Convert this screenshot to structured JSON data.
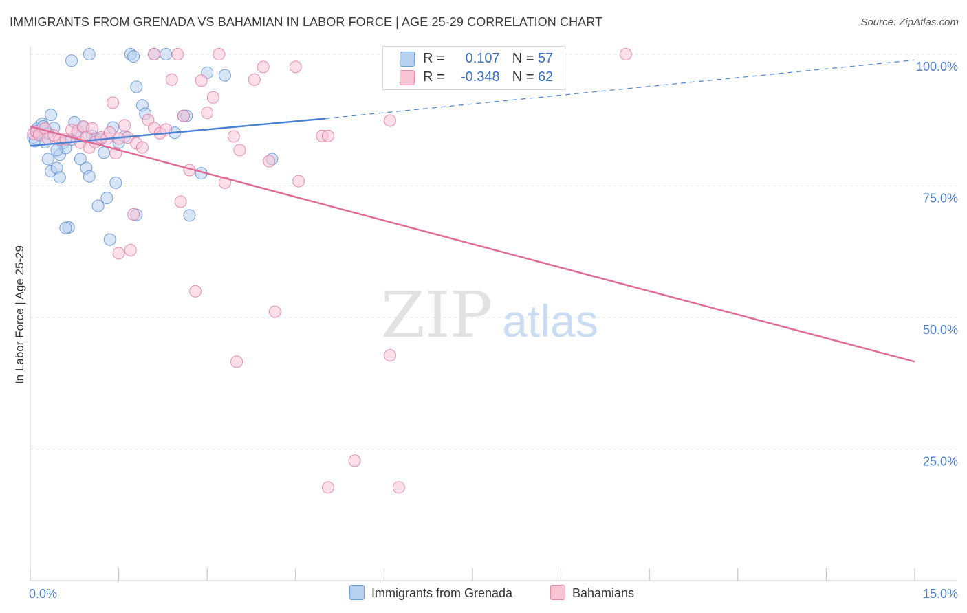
{
  "title": "IMMIGRANTS FROM GRENADA VS BAHAMIAN IN LABOR FORCE | AGE 25-29 CORRELATION CHART",
  "source": "Source: ZipAtlas.com",
  "watermark": {
    "zip": "ZIP",
    "atlas": "atlas"
  },
  "legend": {
    "r_label": "R =",
    "n_label": "N =",
    "series": [
      {
        "name": "Immigrants from Grenada",
        "r": "0.107",
        "n": "57",
        "fill": "#b7d0f0",
        "stroke": "#6f9fdc"
      },
      {
        "name": "Bahamians",
        "r": "-0.348",
        "n": "62",
        "fill": "#f9c5d5",
        "stroke": "#e88aa9"
      }
    ]
  },
  "chart_data": {
    "type": "scatter",
    "title": "IMMIGRANTS FROM GRENADA VS BAHAMIAN IN LABOR FORCE | AGE 25-29 CORRELATION CHART",
    "xlabel": "",
    "ylabel": "In Labor Force | Age 25-29",
    "xlim": [
      0,
      15
    ],
    "ylim": [
      0,
      100
    ],
    "x_tick_labels": [
      {
        "value": 0,
        "label": "0.0%"
      },
      {
        "value": 15,
        "label": "15.0%"
      }
    ],
    "y_tick_labels": [
      {
        "value": 100,
        "label": "100.0%"
      },
      {
        "value": 75,
        "label": "75.0%"
      },
      {
        "value": 50,
        "label": "50.0%"
      },
      {
        "value": 25,
        "label": "25.0%"
      }
    ],
    "grid": true,
    "series": [
      {
        "name": "Immigrants from Grenada",
        "color": "#4a82d4",
        "fill": "#b7d0f0",
        "points": [
          [
            0.05,
            84.2
          ],
          [
            0.08,
            83.5
          ],
          [
            0.1,
            85.5
          ],
          [
            0.12,
            85.9
          ],
          [
            0.15,
            85.0
          ],
          [
            0.2,
            86.8
          ],
          [
            0.22,
            86.3
          ],
          [
            0.25,
            83.3
          ],
          [
            0.3,
            80.1
          ],
          [
            0.35,
            77.8
          ],
          [
            0.4,
            86.0
          ],
          [
            0.45,
            78.4
          ],
          [
            0.5,
            76.6
          ],
          [
            0.5,
            80.9
          ],
          [
            0.55,
            83.1
          ],
          [
            0.6,
            82.2
          ],
          [
            0.65,
            67.1
          ],
          [
            0.7,
            83.8
          ],
          [
            0.75,
            87.1
          ],
          [
            0.8,
            85.0
          ],
          [
            0.85,
            80.1
          ],
          [
            0.9,
            86.1
          ],
          [
            0.95,
            78.4
          ],
          [
            1.0,
            76.8
          ],
          [
            1.05,
            84.5
          ],
          [
            1.1,
            84.0
          ],
          [
            1.15,
            71.2
          ],
          [
            1.2,
            83.9
          ],
          [
            1.25,
            81.3
          ],
          [
            1.3,
            72.7
          ],
          [
            1.35,
            64.8
          ],
          [
            1.4,
            86.1
          ],
          [
            1.45,
            75.6
          ],
          [
            1.5,
            83.2
          ],
          [
            1.6,
            84.4
          ],
          [
            1.7,
            100.0
          ],
          [
            1.75,
            99.6
          ],
          [
            1.8,
            93.8
          ],
          [
            1.9,
            90.3
          ],
          [
            1.95,
            88.7
          ],
          [
            2.1,
            100.0
          ],
          [
            2.3,
            100.0
          ],
          [
            2.45,
            85.1
          ],
          [
            2.6,
            88.3
          ],
          [
            2.65,
            88.3
          ],
          [
            2.7,
            69.4
          ],
          [
            2.9,
            77.4
          ],
          [
            3.0,
            96.5
          ],
          [
            3.3,
            96.0
          ],
          [
            4.1,
            80.1
          ],
          [
            0.6,
            67.0
          ],
          [
            0.7,
            98.8
          ],
          [
            1.0,
            100.0
          ],
          [
            1.8,
            69.5
          ],
          [
            0.35,
            88.5
          ],
          [
            0.45,
            81.8
          ],
          [
            0.3,
            85.0
          ]
        ]
      },
      {
        "name": "Bahamians",
        "color": "#e06b95",
        "fill": "#f9c5d5",
        "points": [
          [
            0.05,
            84.9
          ],
          [
            0.1,
            85.3
          ],
          [
            0.15,
            84.7
          ],
          [
            0.25,
            85.9
          ],
          [
            0.3,
            84.0
          ],
          [
            0.4,
            84.6
          ],
          [
            0.5,
            83.8
          ],
          [
            0.6,
            83.9
          ],
          [
            0.7,
            85.6
          ],
          [
            0.8,
            85.4
          ],
          [
            0.85,
            83.2
          ],
          [
            0.9,
            86.3
          ],
          [
            0.95,
            84.3
          ],
          [
            1.0,
            82.3
          ],
          [
            1.05,
            85.9
          ],
          [
            1.1,
            83.3
          ],
          [
            1.2,
            84.2
          ],
          [
            1.3,
            84.0
          ],
          [
            1.35,
            85.1
          ],
          [
            1.4,
            90.8
          ],
          [
            1.45,
            81.2
          ],
          [
            1.5,
            62.2
          ],
          [
            1.6,
            86.5
          ],
          [
            1.65,
            84.2
          ],
          [
            1.7,
            62.8
          ],
          [
            1.75,
            69.6
          ],
          [
            1.8,
            83.1
          ],
          [
            1.9,
            82.3
          ],
          [
            2.0,
            87.5
          ],
          [
            2.1,
            86.0
          ],
          [
            2.2,
            85.0
          ],
          [
            2.3,
            85.7
          ],
          [
            2.4,
            95.2
          ],
          [
            2.5,
            100.0
          ],
          [
            2.55,
            72.0
          ],
          [
            2.6,
            88.3
          ],
          [
            2.7,
            78.0
          ],
          [
            2.8,
            55.0
          ],
          [
            2.9,
            95.0
          ],
          [
            3.0,
            88.9
          ],
          [
            3.1,
            91.8
          ],
          [
            3.2,
            100.0
          ],
          [
            3.3,
            75.6
          ],
          [
            3.45,
            84.4
          ],
          [
            3.55,
            81.8
          ],
          [
            3.8,
            95.2
          ],
          [
            3.95,
            97.6
          ],
          [
            4.05,
            79.7
          ],
          [
            4.15,
            51.1
          ],
          [
            4.5,
            97.6
          ],
          [
            4.55,
            75.9
          ],
          [
            4.95,
            84.5
          ],
          [
            5.05,
            84.5
          ],
          [
            5.5,
            22.8
          ],
          [
            6.1,
            42.8
          ],
          [
            6.1,
            87.4
          ],
          [
            10.1,
            100.0
          ],
          [
            3.5,
            41.6
          ],
          [
            5.05,
            17.7
          ],
          [
            6.25,
            17.7
          ],
          [
            1.5,
            84.0
          ],
          [
            2.1,
            100.0
          ]
        ]
      }
    ],
    "trend_lines": [
      {
        "name": "Immigrants from Grenada",
        "x_start": 0.0,
        "y_start": 82.6,
        "x_solid_end": 5.0,
        "y_solid_end": 87.8,
        "x_end": 15.0,
        "y_end": 98.9,
        "dashed_after_solid": true
      },
      {
        "name": "Bahamians",
        "x_start": 0.0,
        "y_start": 86.3,
        "x_end": 15.0,
        "y_end": 41.6,
        "dashed_after_solid": false
      }
    ]
  }
}
